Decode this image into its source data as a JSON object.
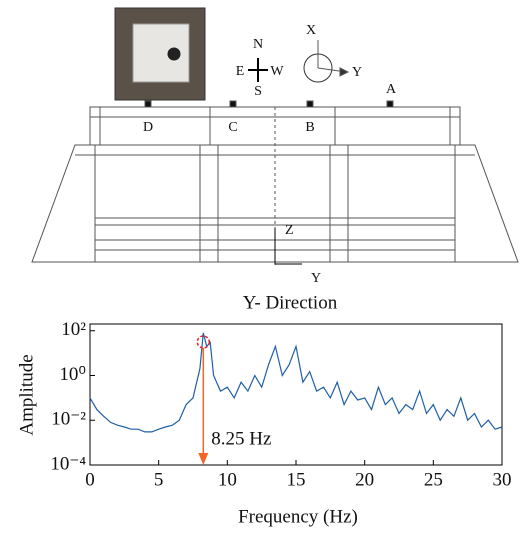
{
  "diagram": {
    "compass": {
      "n": "N",
      "s": "S",
      "e": "E",
      "w": "W"
    },
    "axes": {
      "x": "X",
      "y": "Y"
    },
    "sensors": [
      "A",
      "B",
      "C",
      "D"
    ],
    "section_axes": {
      "z": "Z",
      "y": "Y"
    }
  },
  "chart_data": {
    "type": "line",
    "title": "Y- Direction",
    "x_label": "Frequency (Hz)",
    "y_label": "Amplitude",
    "yscale": "log",
    "x": [
      0,
      0.5,
      1,
      1.5,
      2,
      2.5,
      3,
      3.5,
      4,
      4.5,
      5,
      5.5,
      6,
      6.5,
      7,
      7.5,
      8,
      8.25,
      8.5,
      8.75,
      9,
      9.5,
      10,
      10.5,
      11,
      11.5,
      12,
      12.5,
      13,
      13.5,
      14,
      14.5,
      15,
      15.5,
      16,
      16.5,
      17,
      17.5,
      18,
      18.5,
      19,
      19.5,
      20,
      20.5,
      21,
      21.5,
      22,
      22.5,
      23,
      23.5,
      24,
      24.5,
      25,
      25.5,
      26,
      26.5,
      27,
      27.5,
      28,
      28.5,
      29,
      29.5,
      30
    ],
    "series": [
      {
        "color": "#1f5fa8",
        "values": [
          0.1,
          0.03,
          0.015,
          0.008,
          0.006,
          0.005,
          0.004,
          0.004,
          0.003,
          0.003,
          0.004,
          0.005,
          0.006,
          0.01,
          0.05,
          0.1,
          2,
          80,
          20,
          30,
          1,
          0.2,
          0.3,
          0.1,
          0.5,
          0.2,
          1,
          0.3,
          3,
          20,
          1,
          3,
          20,
          0.5,
          1.5,
          0.2,
          0.3,
          0.1,
          0.5,
          0.05,
          0.2,
          0.08,
          0.1,
          0.03,
          0.3,
          0.05,
          0.1,
          0.02,
          0.05,
          0.03,
          0.2,
          0.02,
          0.05,
          0.01,
          0.03,
          0.015,
          0.1,
          0.01,
          0.02,
          0.005,
          0.01,
          0.004,
          0.005
        ]
      }
    ],
    "xlim": [
      0,
      30
    ],
    "xticks": [
      0,
      5,
      10,
      15,
      20,
      25,
      30
    ],
    "ylim": [
      0.0001,
      200
    ],
    "yticks": [
      {
        "value": 0.0001,
        "label": "10⁻⁴"
      },
      {
        "value": 0.01,
        "label": "10⁻²"
      },
      {
        "value": 1,
        "label": "10⁰"
      },
      {
        "value": 100,
        "label": "10²"
      }
    ],
    "annotation": {
      "text": "8.25 Hz",
      "x": 8.25,
      "color": "#f26522"
    }
  }
}
